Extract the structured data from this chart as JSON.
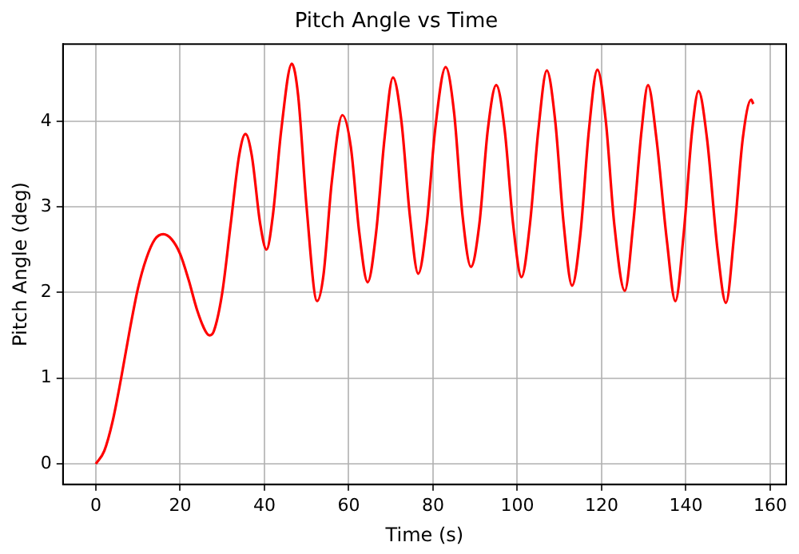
{
  "chart_data": {
    "type": "line",
    "title": "Pitch Angle vs Time",
    "xlabel": "Time (s)",
    "ylabel": "Pitch Angle (deg)",
    "xlim": [
      -7.8,
      163.8
    ],
    "ylim": [
      -0.24,
      4.9
    ],
    "xticks": [
      0,
      20,
      40,
      60,
      80,
      100,
      120,
      140,
      160
    ],
    "yticks": [
      0,
      1,
      2,
      3,
      4
    ],
    "grid": true,
    "legend": false,
    "marker": "none",
    "line_style": "solid",
    "series": [
      {
        "color": "#ff0000",
        "x": [
          0,
          2,
          4,
          6,
          8,
          10,
          12,
          14,
          16,
          18,
          20,
          22,
          24,
          26,
          27,
          28,
          30,
          32,
          34,
          35.5,
          37,
          39,
          40.5,
          42,
          44,
          46.5,
          48,
          50,
          52.5,
          54,
          56,
          58.5,
          60.5,
          62.5,
          64.5,
          66.5,
          68.5,
          70.5,
          72.5,
          74.5,
          76.5,
          78.5,
          80.5,
          83,
          85,
          87,
          89,
          91,
          93,
          95,
          97,
          99,
          101,
          103,
          105,
          107,
          109,
          111,
          113,
          115,
          117,
          119,
          121,
          123,
          125.5,
          127.5,
          129.5,
          131,
          133,
          135.5,
          137.5,
          139.5,
          141.5,
          143,
          145,
          147.5,
          149.5,
          151.5,
          153.5,
          155.5,
          156
        ],
        "values": [
          0,
          0.15,
          0.5,
          1.0,
          1.55,
          2.05,
          2.4,
          2.62,
          2.68,
          2.62,
          2.45,
          2.15,
          1.8,
          1.55,
          1.5,
          1.55,
          2.0,
          2.8,
          3.6,
          3.85,
          3.6,
          2.8,
          2.5,
          2.9,
          3.9,
          4.67,
          4.3,
          3.0,
          1.9,
          2.2,
          3.3,
          4.07,
          3.7,
          2.7,
          2.12,
          2.7,
          3.8,
          4.51,
          4.0,
          2.9,
          2.22,
          2.8,
          3.9,
          4.63,
          4.1,
          2.9,
          2.3,
          2.8,
          3.9,
          4.42,
          3.9,
          2.8,
          2.18,
          2.8,
          3.9,
          4.59,
          4.0,
          2.8,
          2.08,
          2.7,
          3.9,
          4.6,
          4.0,
          2.8,
          2.02,
          2.8,
          3.9,
          4.42,
          3.8,
          2.6,
          1.9,
          2.7,
          3.9,
          4.35,
          3.8,
          2.5,
          1.88,
          2.7,
          3.8,
          4.25,
          4.2
        ]
      }
    ]
  }
}
